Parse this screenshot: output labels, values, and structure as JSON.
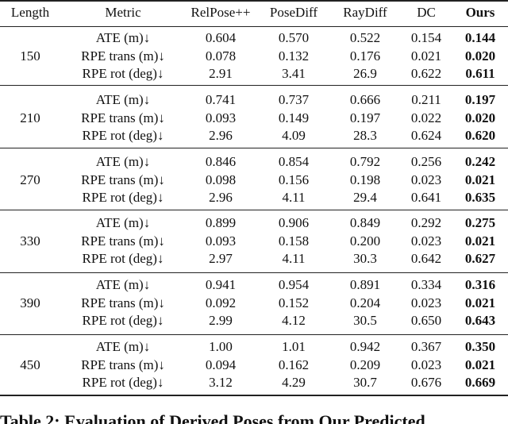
{
  "table": {
    "header": [
      "Length",
      "Metric",
      "RelPose++",
      "PoseDiff",
      "RayDiff",
      "DC",
      "Ours"
    ],
    "groups": [
      {
        "length": "150",
        "rows": [
          [
            "ATE (m)↓",
            "0.604",
            "0.570",
            "0.522",
            "0.154",
            "0.144"
          ],
          [
            "RPE trans (m)↓",
            "0.078",
            "0.132",
            "0.176",
            "0.021",
            "0.020"
          ],
          [
            "RPE rot (deg)↓",
            "2.91",
            "3.41",
            "26.9",
            "0.622",
            "0.611"
          ]
        ]
      },
      {
        "length": "210",
        "rows": [
          [
            "ATE (m)↓",
            "0.741",
            "0.737",
            "0.666",
            "0.211",
            "0.197"
          ],
          [
            "RPE trans (m)↓",
            "0.093",
            "0.149",
            "0.197",
            "0.022",
            "0.020"
          ],
          [
            "RPE rot (deg)↓",
            "2.96",
            "4.09",
            "28.3",
            "0.624",
            "0.620"
          ]
        ]
      },
      {
        "length": "270",
        "rows": [
          [
            "ATE (m)↓",
            "0.846",
            "0.854",
            "0.792",
            "0.256",
            "0.242"
          ],
          [
            "RPE trans (m)↓",
            "0.098",
            "0.156",
            "0.198",
            "0.023",
            "0.021"
          ],
          [
            "RPE rot (deg)↓",
            "2.96",
            "4.11",
            "29.4",
            "0.641",
            "0.635"
          ]
        ]
      },
      {
        "length": "330",
        "rows": [
          [
            "ATE (m)↓",
            "0.899",
            "0.906",
            "0.849",
            "0.292",
            "0.275"
          ],
          [
            "RPE trans (m)↓",
            "0.093",
            "0.158",
            "0.200",
            "0.023",
            "0.021"
          ],
          [
            "RPE rot (deg)↓",
            "2.97",
            "4.11",
            "30.3",
            "0.642",
            "0.627"
          ]
        ]
      },
      {
        "length": "390",
        "rows": [
          [
            "ATE (m)↓",
            "0.941",
            "0.954",
            "0.891",
            "0.334",
            "0.316"
          ],
          [
            "RPE trans (m)↓",
            "0.092",
            "0.152",
            "0.204",
            "0.023",
            "0.021"
          ],
          [
            "RPE rot (deg)↓",
            "2.99",
            "4.12",
            "30.5",
            "0.650",
            "0.643"
          ]
        ]
      },
      {
        "length": "450",
        "rows": [
          [
            "ATE (m)↓",
            "1.00",
            "1.01",
            "0.942",
            "0.367",
            "0.350"
          ],
          [
            "RPE trans (m)↓",
            "0.094",
            "0.162",
            "0.209",
            "0.023",
            "0.021"
          ],
          [
            "RPE rot (deg)↓",
            "3.12",
            "4.29",
            "30.7",
            "0.676",
            "0.669"
          ]
        ]
      }
    ],
    "caption": "Table 2: Evaluation of Derived Poses from Our Predicted"
  }
}
